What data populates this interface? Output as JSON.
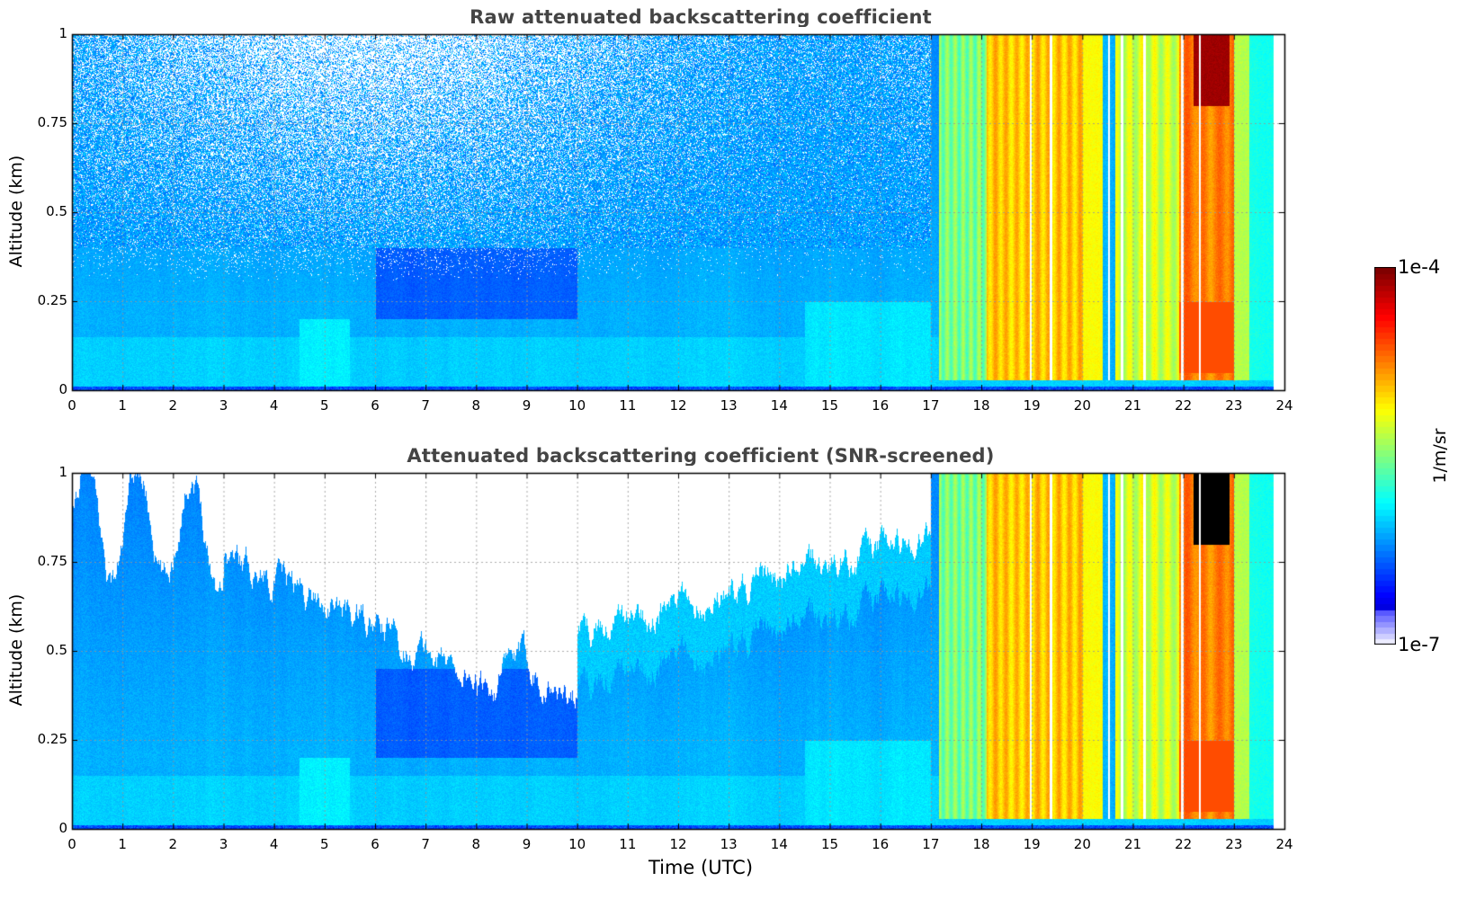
{
  "chart_data": [
    {
      "type": "heatmap",
      "title": "Raw attenuated backscattering coefficient",
      "xlabel": "",
      "ylabel": "Altitude (km)",
      "xlim": [
        0,
        24
      ],
      "ylim": [
        0,
        1
      ],
      "xticks": [
        "0",
        "1",
        "2",
        "3",
        "4",
        "5",
        "6",
        "7",
        "8",
        "9",
        "10",
        "11",
        "12",
        "13",
        "14",
        "15",
        "16",
        "17",
        "18",
        "19",
        "20",
        "21",
        "22",
        "23",
        "24"
      ],
      "yticks": [
        "0",
        "0.25",
        "0.5",
        "0.75",
        "1"
      ],
      "grid": true,
      "screened": false
    },
    {
      "type": "heatmap",
      "title": "Attenuated backscattering coefficient (SNR-screened)",
      "xlabel": "Time (UTC)",
      "ylabel": "Altitude (km)",
      "xlim": [
        0,
        24
      ],
      "ylim": [
        0,
        1
      ],
      "xticks": [
        "0",
        "1",
        "2",
        "3",
        "4",
        "5",
        "6",
        "7",
        "8",
        "9",
        "10",
        "11",
        "12",
        "13",
        "14",
        "15",
        "16",
        "17",
        "18",
        "19",
        "20",
        "21",
        "22",
        "23",
        "24"
      ],
      "yticks": [
        "0",
        "0.25",
        "0.5",
        "0.75",
        "1"
      ],
      "grid": true,
      "screened": true
    }
  ],
  "colorbar": {
    "max_label": "1e-4",
    "min_label": "1e-7",
    "units": "1/m/sr",
    "scale": "log",
    "colormap": "jet"
  },
  "colors": {
    "title": "#444444",
    "background": "#ffffff"
  }
}
